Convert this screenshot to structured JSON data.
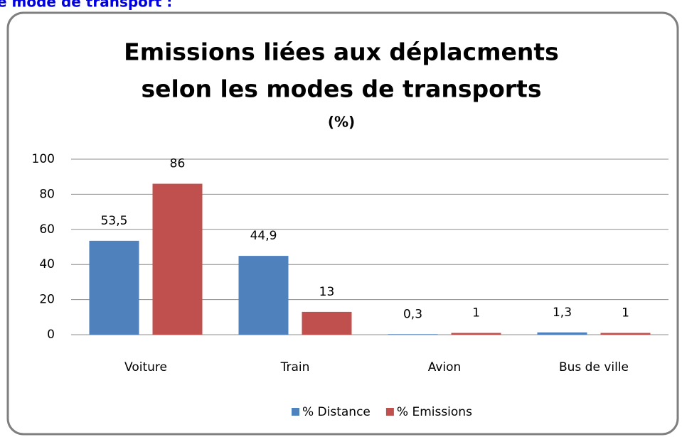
{
  "heading": "e mode de transport :",
  "chart_data": {
    "type": "bar",
    "title": [
      "Emissions liées aux déplacments",
      "selon les modes de transports"
    ],
    "subtitle": "(%)",
    "categories": [
      "Voiture",
      "Train",
      "Avion",
      "Bus de ville"
    ],
    "series": [
      {
        "name": "% Distance",
        "color": "#4f81bd",
        "values": [
          53.5,
          44.9,
          0.3,
          1.3
        ],
        "value_labels": [
          "53,5",
          "44,9",
          "0,3",
          "1,3"
        ]
      },
      {
        "name": "% Emissions",
        "color": "#c0504d",
        "values": [
          86,
          13,
          1,
          1
        ]
      }
    ],
    "ylim": [
      0,
      100
    ],
    "yticks": [
      0,
      20,
      40,
      60,
      80,
      100
    ],
    "grid": true,
    "legend": "bottom"
  }
}
